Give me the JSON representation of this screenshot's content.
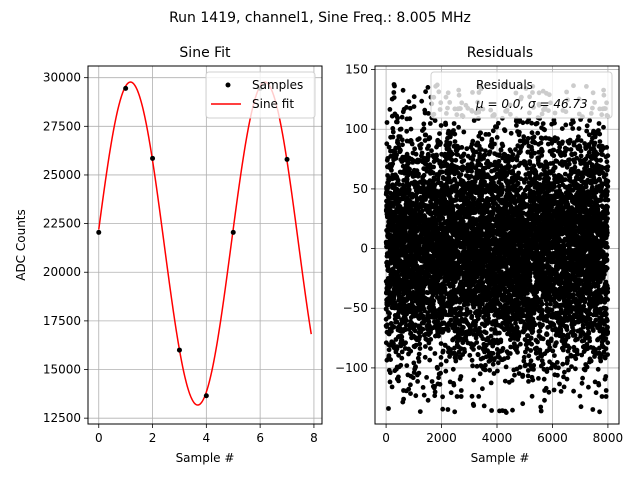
{
  "figure": {
    "suptitle": "Run 1419, channel1, Sine Freq.: 8.005 MHz"
  },
  "chart_data": [
    {
      "type": "line",
      "title": "Sine Fit",
      "xlabel": "Sample #",
      "ylabel": "ADC Counts",
      "xlim": [
        -0.4,
        8.3
      ],
      "ylim": [
        12200,
        30600
      ],
      "xticks": [
        0,
        2,
        4,
        6,
        8
      ],
      "yticks": [
        12500,
        15000,
        17500,
        20000,
        22500,
        25000,
        27500,
        30000
      ],
      "grid": true,
      "legend_position": "top-right",
      "series": [
        {
          "name": "Samples",
          "style": "markers",
          "color": "#000000",
          "x": [
            0,
            1,
            2,
            3,
            4,
            5,
            6,
            7
          ],
          "y": [
            22050,
            29450,
            25850,
            16000,
            13650,
            22050,
            29450,
            25800
          ]
        },
        {
          "name": "Sine fit",
          "style": "line",
          "color": "#ff0000",
          "model": {
            "offset": 21475,
            "amplitude": 8300,
            "period_samples": 4.997,
            "x_start": 0,
            "x_end": 7.9,
            "phase_ref_x": 1.18
          }
        }
      ]
    },
    {
      "type": "scatter",
      "title": "Residuals",
      "xlabel": "Sample #",
      "xlim": [
        -400,
        8400
      ],
      "ylim": [
        -147,
        153
      ],
      "xticks": [
        0,
        2000,
        4000,
        6000,
        8000
      ],
      "yticks": [
        -100,
        -50,
        0,
        50,
        100,
        150
      ],
      "grid": true,
      "legend_position": "top-right",
      "series": [
        {
          "name": "Residuals",
          "color": "#000000",
          "n_points": 8000,
          "x_range": [
            0,
            8000
          ],
          "mean": 0.0,
          "std": 46.73
        }
      ],
      "legend_label": "Residuals",
      "legend_stats": "μ = 0.0, σ = 46.73"
    }
  ]
}
